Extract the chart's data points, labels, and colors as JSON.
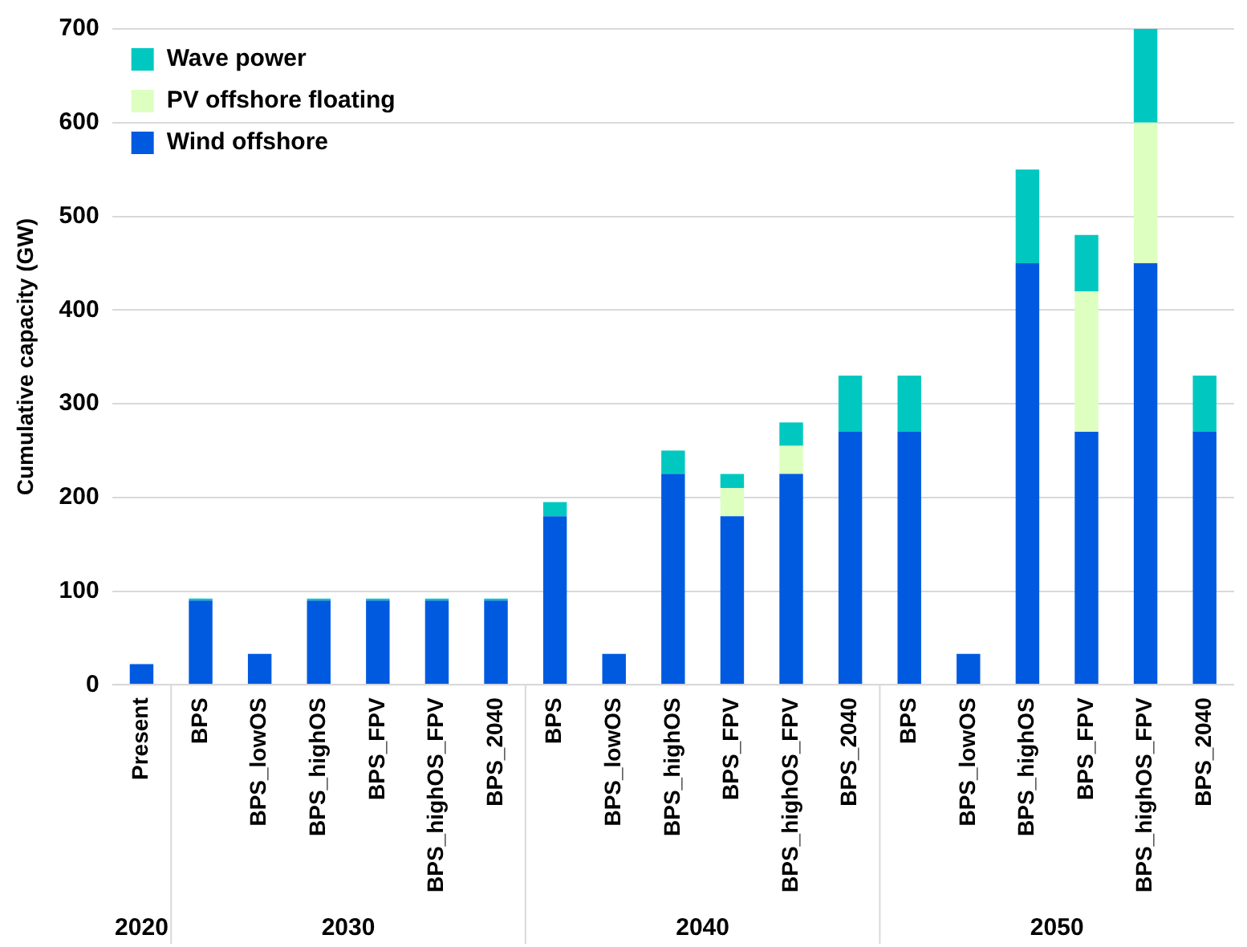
{
  "chart_data": {
    "type": "bar",
    "stacked": true,
    "ylabel": "Cumulative capacity (GW)",
    "categories": [
      "Present",
      "BPS",
      "BPS_lowOS",
      "BPS_highOS",
      "BPS_FPV",
      "BPS_highOS_FPV",
      "BPS_2040",
      "BPS",
      "BPS_lowOS",
      "BPS_highOS",
      "BPS_FPV",
      "BPS_highOS_FPV",
      "BPS_2040",
      "BPS",
      "BPS_lowOS",
      "BPS_highOS",
      "BPS_FPV",
      "BPS_highOS_FPV",
      "BPS_2040"
    ],
    "series": [
      {
        "name": "Wind offshore",
        "color": "#005ae0",
        "values": [
          22,
          90,
          33,
          90,
          90,
          90,
          90,
          180,
          33,
          225,
          180,
          225,
          270,
          270,
          33,
          450,
          270,
          450,
          270
        ]
      },
      {
        "name": "PV offshore floating",
        "color": "#ddffc0",
        "values": [
          0,
          0,
          0,
          0,
          null,
          null,
          0,
          0,
          0,
          0,
          30,
          30,
          0,
          0,
          0,
          0,
          150,
          150,
          0
        ]
      },
      {
        "name": "Wave power",
        "color": "#00c8c0",
        "values": [
          0,
          2,
          0,
          2,
          2,
          2,
          2,
          15,
          0,
          25,
          15,
          25,
          60,
          60,
          0,
          100,
          60,
          100,
          60
        ]
      }
    ],
    "ylim": [
      0,
      700
    ],
    "yticks": [
      0,
      100,
      200,
      300,
      400,
      500,
      600,
      700
    ],
    "grid": "y",
    "legend": "top left",
    "annotations": [
      "2020",
      "2030",
      "2040",
      "2050"
    ]
  }
}
